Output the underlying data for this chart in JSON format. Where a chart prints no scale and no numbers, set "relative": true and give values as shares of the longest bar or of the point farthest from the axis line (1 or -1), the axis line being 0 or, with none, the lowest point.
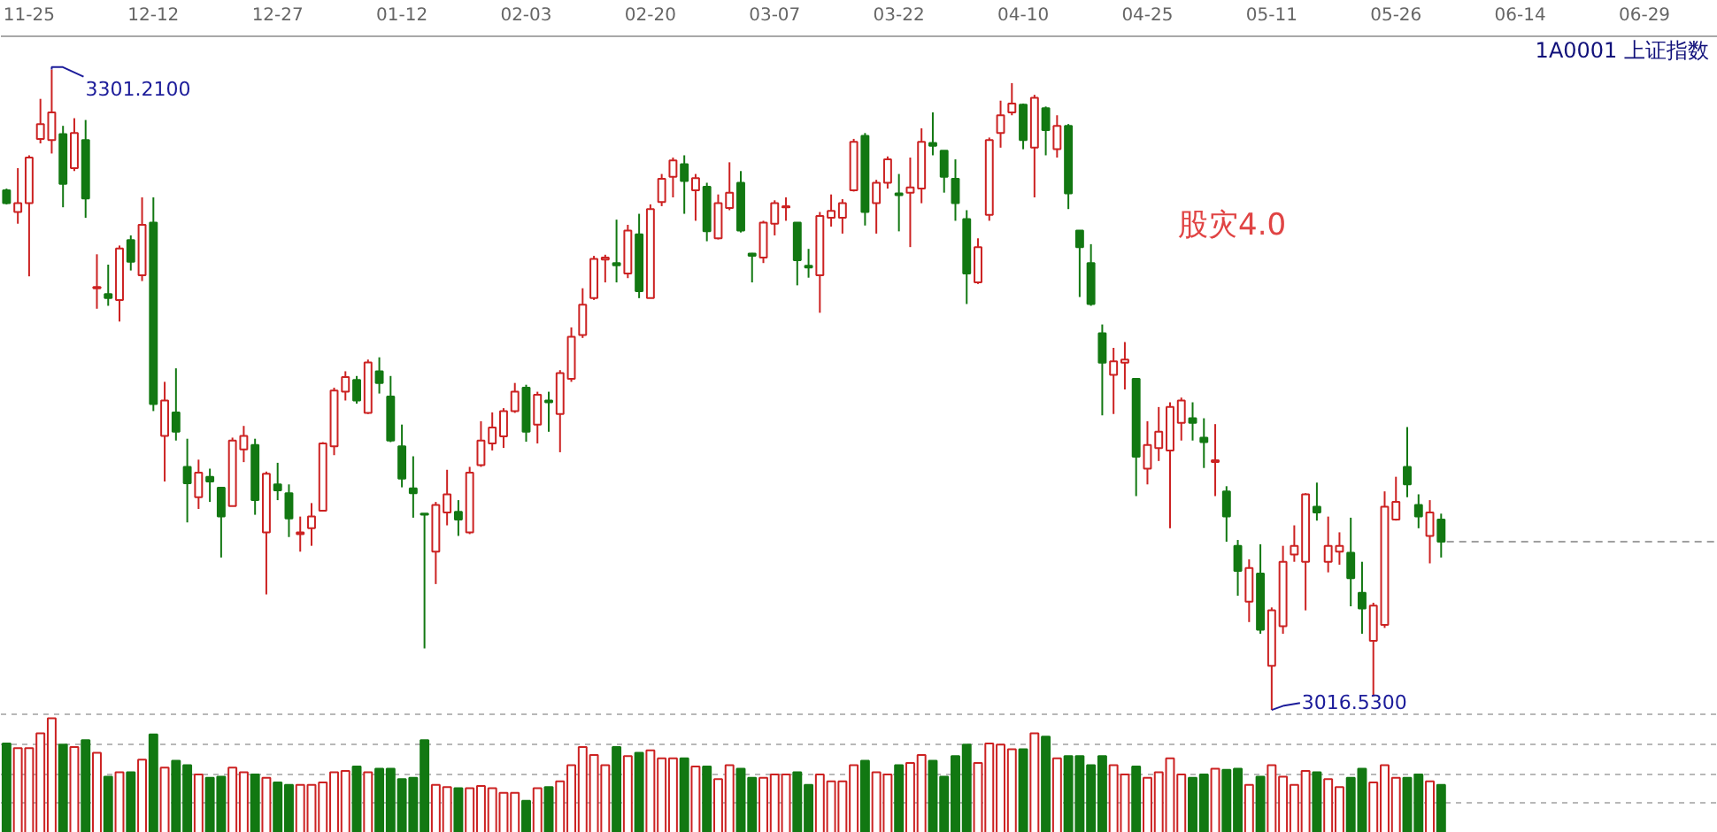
{
  "chart_data": [
    {
      "type": "candlestick",
      "title": "1A0001 上证指数",
      "categories": [
        null,
        null,
        "11-25",
        null,
        null,
        null,
        null,
        null,
        null,
        null,
        null,
        null,
        null,
        "12-12",
        null,
        null,
        null,
        null,
        null,
        null,
        null,
        null,
        null,
        null,
        "12-27",
        null,
        null,
        null,
        null,
        null,
        null,
        null,
        null,
        null,
        null,
        "01-12",
        null,
        null,
        null,
        null,
        null,
        null,
        null,
        null,
        null,
        null,
        "02-03",
        null,
        null,
        null,
        null,
        null,
        null,
        null,
        null,
        null,
        null,
        "02-20",
        null,
        null,
        null,
        null,
        null,
        null,
        null,
        null,
        null,
        null,
        "03-07",
        null,
        null,
        null,
        null,
        null,
        null,
        null,
        null,
        null,
        null,
        "03-22",
        null,
        null,
        null,
        null,
        null,
        null,
        null,
        null,
        null,
        null,
        "04-10",
        null,
        null,
        null,
        null,
        null,
        null,
        null,
        null,
        null,
        null,
        "04-25",
        null,
        null,
        null,
        null,
        null,
        null,
        null,
        null,
        null,
        null,
        "05-11",
        null,
        null,
        null,
        null,
        null,
        null,
        null,
        null,
        null,
        null,
        "05-26",
        null,
        null,
        null,
        null,
        null,
        null,
        null,
        null,
        null,
        null,
        "06-14",
        null,
        null,
        null,
        null,
        null,
        null,
        null,
        null,
        null,
        null,
        "06-29",
        null,
        null,
        null,
        null,
        null,
        null
      ],
      "ohlc": [
        [
          3247.5,
          3248.3,
          3241.3,
          3241.8
        ],
        [
          3237.9,
          3257.4,
          3232.7,
          3241.8
        ],
        [
          3241.8,
          3263.1,
          3209.3,
          3262.1
        ],
        [
          3270.4,
          3288.2,
          3268.4,
          3277.0
        ],
        [
          3269.9,
          3301.21,
          3263.9,
          3282.2
        ],
        [
          3272.5,
          3276.2,
          3240.0,
          3250.4
        ],
        [
          3257.4,
          3279.6,
          3256.1,
          3273.0
        ],
        [
          3269.9,
          3278.8,
          3235.3,
          3243.9
        ],
        [
          3204.0,
          3219.1,
          3194.9,
          3204.6
        ],
        [
          3201.4,
          3214.5,
          3196.2,
          3199.6
        ],
        [
          3198.8,
          3223.0,
          3189.2,
          3221.7
        ],
        [
          3225.4,
          3227.5,
          3211.9,
          3215.8
        ],
        [
          3209.8,
          3244.4,
          3207.2,
          3232.2
        ],
        [
          3233.2,
          3244.4,
          3149.4,
          3152.5
        ],
        [
          3138.4,
          3162.4,
          3118.1,
          3154.1
        ],
        [
          3148.8,
          3168.4,
          3136.3,
          3140.2
        ],
        [
          3124.6,
          3137.1,
          3099.9,
          3117.3
        ],
        [
          3111.1,
          3127.8,
          3105.9,
          3122.0
        ],
        [
          3120.2,
          3123.8,
          3109.0,
          3118.1
        ],
        [
          3115.3,
          3115.3,
          3084.3,
          3102.5
        ],
        [
          3107.2,
          3137.6,
          3107.2,
          3136.3
        ],
        [
          3132.4,
          3142.8,
          3126.7,
          3138.4
        ],
        [
          3134.3,
          3137.1,
          3103.3,
          3109.8
        ],
        [
          3095.5,
          3122.5,
          3067.9,
          3121.5
        ],
        [
          3116.8,
          3126.4,
          3109.8,
          3114.2
        ],
        [
          3112.9,
          3116.8,
          3093.4,
          3101.7
        ],
        [
          3094.7,
          3102.5,
          3086.9,
          3095.5
        ],
        [
          3097.3,
          3108.5,
          3089.5,
          3102.5
        ],
        [
          3105.1,
          3135.6,
          3105.1,
          3135.0
        ],
        [
          3133.7,
          3159.8,
          3129.8,
          3158.5
        ],
        [
          3158.0,
          3167.1,
          3154.1,
          3164.5
        ],
        [
          3163.2,
          3165.0,
          3152.7,
          3154.1
        ],
        [
          3148.6,
          3172.3,
          3148.1,
          3171.0
        ],
        [
          3167.1,
          3173.3,
          3157.2,
          3161.9
        ],
        [
          3155.9,
          3165.0,
          3135.6,
          3136.3
        ],
        [
          3133.7,
          3143.4,
          3115.5,
          3119.4
        ],
        [
          3115.0,
          3129.3,
          3102.0,
          3112.9
        ],
        [
          3103.8,
          3103.8,
          3043.9,
          3103.3
        ],
        [
          3086.9,
          3109.0,
          3072.5,
          3107.7
        ],
        [
          3104.3,
          3123.3,
          3098.6,
          3112.4
        ],
        [
          3104.6,
          3109.8,
          3093.9,
          3101.2
        ],
        [
          3095.5,
          3124.6,
          3094.7,
          3122.0
        ],
        [
          3125.4,
          3144.9,
          3124.6,
          3136.3
        ],
        [
          3135.0,
          3148.8,
          3131.9,
          3142.1
        ],
        [
          3138.2,
          3150.7,
          3133.0,
          3149.4
        ],
        [
          3149.4,
          3161.9,
          3148.6,
          3158.0
        ],
        [
          3159.8,
          3161.1,
          3135.8,
          3140.2
        ],
        [
          3143.4,
          3158.0,
          3135.0,
          3156.7
        ],
        [
          3154.1,
          3158.0,
          3140.2,
          3153.3
        ],
        [
          3148.1,
          3167.6,
          3131.1,
          3166.3
        ],
        [
          3163.7,
          3186.6,
          3162.4,
          3182.4
        ],
        [
          3183.2,
          3204.0,
          3181.9,
          3196.7
        ],
        [
          3199.6,
          3218.4,
          3198.8,
          3217.1
        ],
        [
          3216.8,
          3218.9,
          3206.6,
          3217.6
        ],
        [
          3215.2,
          3234.5,
          3206.6,
          3214.2
        ],
        [
          3210.6,
          3232.2,
          3208.5,
          3229.6
        ],
        [
          3228.0,
          3237.1,
          3199.6,
          3202.7
        ],
        [
          3199.6,
          3241.3,
          3199.6,
          3239.2
        ],
        [
          3242.3,
          3254.8,
          3240.5,
          3252.7
        ],
        [
          3253.5,
          3262.1,
          3244.4,
          3260.8
        ],
        [
          3259.2,
          3263.1,
          3237.1,
          3251.7
        ],
        [
          3247.5,
          3254.8,
          3234.0,
          3253.0
        ],
        [
          3249.1,
          3250.9,
          3224.9,
          3229.3
        ],
        [
          3226.2,
          3245.7,
          3225.7,
          3241.8
        ],
        [
          3239.7,
          3260.0,
          3238.7,
          3246.5
        ],
        [
          3250.9,
          3256.1,
          3228.8,
          3229.6
        ],
        [
          3219.4,
          3219.7,
          3206.6,
          3218.4
        ],
        [
          3217.6,
          3234.0,
          3215.2,
          3233.2
        ],
        [
          3232.7,
          3243.1,
          3227.5,
          3241.8
        ],
        [
          3240.0,
          3244.4,
          3234.0,
          3240.5
        ],
        [
          3233.2,
          3233.2,
          3205.3,
          3216.5
        ],
        [
          3214.0,
          3221.5,
          3208.7,
          3213.2
        ],
        [
          3209.8,
          3237.9,
          3193.1,
          3236.1
        ],
        [
          3235.3,
          3245.7,
          3231.4,
          3238.4
        ],
        [
          3235.3,
          3243.6,
          3228.3,
          3241.8
        ],
        [
          3247.5,
          3270.4,
          3247.0,
          3269.1
        ],
        [
          3271.7,
          3273.0,
          3231.9,
          3237.9
        ],
        [
          3241.8,
          3252.2,
          3228.3,
          3250.9
        ],
        [
          3250.9,
          3262.6,
          3248.3,
          3261.3
        ],
        [
          3246.2,
          3254.8,
          3229.3,
          3245.4
        ],
        [
          3246.5,
          3262.1,
          3222.3,
          3248.8
        ],
        [
          3248.3,
          3275.1,
          3241.8,
          3269.1
        ],
        [
          3268.6,
          3282.2,
          3263.1,
          3267.3
        ],
        [
          3265.2,
          3265.2,
          3246.5,
          3253.5
        ],
        [
          3252.7,
          3261.3,
          3234.0,
          3241.8
        ],
        [
          3234.8,
          3238.7,
          3197.0,
          3210.6
        ],
        [
          3206.6,
          3226.2,
          3205.9,
          3222.3
        ],
        [
          3236.6,
          3271.0,
          3234.0,
          3269.9
        ],
        [
          3273.0,
          3287.4,
          3266.5,
          3280.9
        ],
        [
          3282.2,
          3295.2,
          3280.9,
          3286.1
        ],
        [
          3285.6,
          3286.1,
          3265.8,
          3269.9
        ],
        [
          3266.5,
          3290.0,
          3244.4,
          3288.7
        ],
        [
          3284.0,
          3284.8,
          3263.1,
          3274.3
        ],
        [
          3265.8,
          3280.9,
          3262.1,
          3276.2
        ],
        [
          3276.2,
          3277.0,
          3239.2,
          3246.2
        ],
        [
          3229.6,
          3229.6,
          3200.1,
          3222.3
        ],
        [
          3215.2,
          3223.6,
          3196.2,
          3197.0
        ],
        [
          3184.0,
          3187.9,
          3147.5,
          3170.9
        ],
        [
          3165.5,
          3177.5,
          3148.1,
          3171.5
        ],
        [
          3170.9,
          3180.1,
          3159.0,
          3172.3
        ],
        [
          3163.7,
          3163.7,
          3111.6,
          3129.1
        ],
        [
          3123.8,
          3144.9,
          3116.8,
          3134.3
        ],
        [
          3132.9,
          3151.2,
          3127.2,
          3140.2
        ],
        [
          3131.9,
          3153.3,
          3097.3,
          3151.2
        ],
        [
          3144.2,
          3155.4,
          3136.3,
          3154.1
        ],
        [
          3146.2,
          3153.3,
          3136.3,
          3144.2
        ],
        [
          3137.6,
          3146.2,
          3124.1,
          3135.6
        ],
        [
          3126.7,
          3143.6,
          3111.6,
          3127.5
        ],
        [
          3113.7,
          3116.0,
          3091.3,
          3102.5
        ],
        [
          3089.5,
          3092.1,
          3067.3,
          3078.3
        ],
        [
          3064.7,
          3083.5,
          3055.6,
          3079.6
        ],
        [
          3077.2,
          3090.2,
          3050.4,
          3052.2
        ],
        [
          3036.1,
          3062.1,
          3016.53,
          3060.8
        ],
        [
          3053.8,
          3089.5,
          3050.4,
          3082.4
        ],
        [
          3085.6,
          3098.6,
          3082.4,
          3089.5
        ],
        [
          3082.4,
          3112.9,
          3060.8,
          3112.4
        ],
        [
          3106.9,
          3117.6,
          3100.7,
          3104.3
        ],
        [
          3082.4,
          3102.5,
          3077.7,
          3089.5
        ],
        [
          3086.9,
          3095.5,
          3081.1,
          3089.5
        ],
        [
          3086.4,
          3102.0,
          3062.6,
          3075.1
        ],
        [
          3068.6,
          3082.4,
          3050.4,
          3061.6
        ],
        [
          3047.3,
          3064.2,
          3022.5,
          3062.9
        ],
        [
          3054.3,
          3113.7,
          3053.0,
          3106.9
        ],
        [
          3101.2,
          3120.2,
          3100.7,
          3109.0
        ],
        [
          3124.6,
          3142.3,
          3111.1,
          3116.8
        ],
        [
          3107.7,
          3112.4,
          3097.3,
          3102.5
        ],
        [
          3093.9,
          3109.8,
          3081.7,
          3104.3
        ],
        [
          3101.2,
          3103.8,
          3084.3,
          3091.3
        ],
        null,
        null,
        null,
        null,
        null,
        null,
        null,
        null,
        null,
        null,
        null,
        null,
        null,
        null,
        null,
        null,
        null,
        null,
        null,
        null,
        null,
        null,
        null,
        null
      ],
      "colors": [
        "#127812",
        "#cc2222",
        "#cc2222",
        "#cc2222",
        "#cc2222",
        "#127812",
        "#cc2222",
        "#127812",
        "#cc2222",
        "#127812",
        "#cc2222",
        "#127812",
        "#cc2222",
        "#127812",
        "#cc2222",
        "#127812",
        "#127812",
        "#cc2222",
        "#127812",
        "#127812",
        "#cc2222",
        "#cc2222",
        "#127812",
        "#cc2222",
        "#127812",
        "#127812",
        "#cc2222",
        "#cc2222",
        "#cc2222",
        "#cc2222",
        "#cc2222",
        "#127812",
        "#cc2222",
        "#127812",
        "#127812",
        "#127812",
        "#127812",
        "#127812",
        "#cc2222",
        "#cc2222",
        "#127812",
        "#cc2222",
        "#cc2222",
        "#cc2222",
        "#cc2222",
        "#cc2222",
        "#127812",
        "#cc2222",
        "#127812",
        "#cc2222",
        "#cc2222",
        "#cc2222",
        "#cc2222",
        "#cc2222",
        "#127812",
        "#cc2222",
        "#127812",
        "#cc2222",
        "#cc2222",
        "#cc2222",
        "#127812",
        "#cc2222",
        "#127812",
        "#cc2222",
        "#cc2222",
        "#127812",
        "#127812",
        "#cc2222",
        "#cc2222",
        "#cc2222",
        "#127812",
        "#127812",
        "#cc2222",
        "#cc2222",
        "#cc2222",
        "#cc2222",
        "#127812",
        "#cc2222",
        "#cc2222",
        "#127812",
        "#cc2222",
        "#cc2222",
        "#127812",
        "#127812",
        "#127812",
        "#127812",
        "#cc2222",
        "#cc2222",
        "#cc2222",
        "#cc2222",
        "#127812",
        "#cc2222",
        "#127812",
        "#cc2222",
        "#127812",
        "#127812",
        "#127812",
        "#127812",
        "#cc2222",
        "#cc2222",
        "#127812",
        "#cc2222",
        "#cc2222",
        "#cc2222",
        "#cc2222",
        "#127812",
        "#127812",
        "#cc2222",
        "#127812",
        "#127812",
        "#cc2222",
        "#127812",
        "#cc2222",
        "#cc2222",
        "#cc2222",
        "#cc2222",
        "#127812",
        "#cc2222",
        "#cc2222",
        "#127812",
        "#127812",
        "#cc2222",
        "#cc2222",
        "#cc2222",
        "#127812",
        "#127812",
        "#cc2222",
        "#127812",
        null,
        null,
        null,
        null,
        null,
        null,
        null,
        null,
        null,
        null,
        null,
        null,
        null,
        null,
        null,
        null,
        null,
        null,
        null,
        null,
        null,
        null,
        null,
        null
      ],
      "tick_labels": "x",
      "ref_lines": [
        {
          "axis": "y",
          "value": 3091.3,
          "color": "#a0a0a0",
          "line_style": "dashed"
        }
      ],
      "annotations": [
        "3301.2100",
        "3016.5300",
        "股灾4.0"
      ]
    },
    {
      "type": "bar",
      "categories": [
        null,
        null,
        null,
        null,
        null,
        null,
        null,
        null,
        null,
        null,
        null,
        null,
        null,
        null,
        null,
        null,
        null,
        null,
        null,
        null,
        null,
        null,
        null,
        null,
        null,
        null,
        null,
        null,
        null,
        null,
        null,
        null,
        null,
        null,
        null,
        null,
        null,
        null,
        null,
        null,
        null,
        null,
        null,
        null,
        null,
        null,
        null,
        null,
        null,
        null,
        null,
        null,
        null,
        null,
        null,
        null,
        null,
        null,
        null,
        null,
        null,
        null,
        null,
        null,
        null,
        null,
        null,
        null,
        null,
        null,
        null,
        null,
        null,
        null,
        null,
        null,
        null,
        null,
        null,
        null,
        null,
        null,
        null,
        null,
        null,
        null,
        null,
        null,
        null,
        null,
        null,
        null,
        null,
        null,
        null,
        null,
        null,
        null,
        null,
        null,
        null,
        null,
        null,
        null,
        null,
        null,
        null,
        null,
        null,
        null,
        null,
        null,
        null,
        null,
        null,
        null,
        null,
        null,
        null,
        null,
        null,
        null,
        null,
        null,
        null,
        null,
        null,
        null,
        null,
        null,
        null,
        null,
        null,
        null,
        null,
        null,
        null,
        null,
        null,
        null,
        null,
        null,
        null,
        null,
        null,
        null,
        null,
        null,
        null,
        null,
        null,
        null
      ],
      "values": [
        0.78,
        0.74,
        0.74,
        0.87,
        1,
        0.77,
        0.75,
        0.81,
        0.7,
        0.49,
        0.53,
        0.53,
        0.64,
        0.86,
        0.57,
        0.63,
        0.59,
        0.51,
        0.48,
        0.49,
        0.57,
        0.53,
        0.51,
        0.48,
        0.44,
        0.42,
        0.42,
        0.42,
        0.44,
        0.53,
        0.54,
        0.58,
        0.53,
        0.56,
        0.56,
        0.47,
        0.48,
        0.81,
        0.42,
        0.4,
        0.39,
        0.39,
        0.41,
        0.39,
        0.35,
        0.35,
        0.28,
        0.39,
        0.4,
        0.45,
        0.59,
        0.75,
        0.68,
        0.59,
        0.75,
        0.67,
        0.7,
        0.72,
        0.65,
        0.65,
        0.65,
        0.58,
        0.58,
        0.47,
        0.59,
        0.56,
        0.48,
        0.48,
        0.51,
        0.51,
        0.53,
        0.42,
        0.51,
        0.45,
        0.45,
        0.59,
        0.63,
        0.53,
        0.51,
        0.59,
        0.61,
        0.68,
        0.63,
        0.49,
        0.67,
        0.77,
        0.61,
        0.78,
        0.77,
        0.73,
        0.73,
        0.87,
        0.84,
        0.65,
        0.67,
        0.67,
        0.59,
        0.67,
        0.59,
        0.51,
        0.58,
        0.48,
        0.53,
        0.65,
        0.51,
        0.48,
        0.51,
        0.56,
        0.55,
        0.56,
        0.42,
        0.49,
        0.59,
        0.49,
        0.42,
        0.54,
        0.53,
        0.47,
        0.4,
        0.48,
        0.56,
        0.44,
        0.59,
        0.48,
        0.48,
        0.51,
        0.45,
        0.42,
        null,
        null,
        null,
        null,
        null,
        null,
        null,
        null,
        null,
        null,
        null,
        null,
        null,
        null,
        null,
        null,
        null,
        null,
        null,
        null,
        null,
        null,
        null,
        null
      ],
      "colors": [
        "#127812",
        "#cc2222",
        "#cc2222",
        "#cc2222",
        "#cc2222",
        "#127812",
        "#cc2222",
        "#127812",
        "#cc2222",
        "#127812",
        "#cc2222",
        "#127812",
        "#cc2222",
        "#127812",
        "#cc2222",
        "#127812",
        "#127812",
        "#cc2222",
        "#127812",
        "#127812",
        "#cc2222",
        "#cc2222",
        "#127812",
        "#cc2222",
        "#127812",
        "#127812",
        "#cc2222",
        "#cc2222",
        "#cc2222",
        "#cc2222",
        "#cc2222",
        "#127812",
        "#cc2222",
        "#127812",
        "#127812",
        "#127812",
        "#127812",
        "#127812",
        "#cc2222",
        "#cc2222",
        "#127812",
        "#cc2222",
        "#cc2222",
        "#cc2222",
        "#cc2222",
        "#cc2222",
        "#127812",
        "#cc2222",
        "#127812",
        "#cc2222",
        "#cc2222",
        "#cc2222",
        "#cc2222",
        "#cc2222",
        "#127812",
        "#cc2222",
        "#127812",
        "#cc2222",
        "#cc2222",
        "#cc2222",
        "#127812",
        "#cc2222",
        "#127812",
        "#cc2222",
        "#cc2222",
        "#127812",
        "#127812",
        "#cc2222",
        "#cc2222",
        "#cc2222",
        "#127812",
        "#127812",
        "#cc2222",
        "#cc2222",
        "#cc2222",
        "#cc2222",
        "#127812",
        "#cc2222",
        "#cc2222",
        "#127812",
        "#cc2222",
        "#cc2222",
        "#127812",
        "#127812",
        "#127812",
        "#127812",
        "#cc2222",
        "#cc2222",
        "#cc2222",
        "#cc2222",
        "#127812",
        "#cc2222",
        "#127812",
        "#cc2222",
        "#127812",
        "#127812",
        "#127812",
        "#127812",
        "#cc2222",
        "#cc2222",
        "#127812",
        "#cc2222",
        "#cc2222",
        "#cc2222",
        "#cc2222",
        "#127812",
        "#127812",
        "#cc2222",
        "#127812",
        "#127812",
        "#cc2222",
        "#127812",
        "#cc2222",
        "#cc2222",
        "#cc2222",
        "#cc2222",
        "#127812",
        "#cc2222",
        "#cc2222",
        "#127812",
        "#127812",
        "#cc2222",
        "#cc2222",
        "#cc2222",
        "#127812",
        "#127812",
        "#cc2222",
        "#127812",
        null,
        null,
        null,
        null,
        null,
        null,
        null,
        null,
        null,
        null,
        null,
        null,
        null,
        null,
        null,
        null,
        null,
        null,
        null,
        null,
        null,
        null,
        null,
        null
      ],
      "relative": true,
      "grid": "y",
      "tick_labels": false
    }
  ]
}
